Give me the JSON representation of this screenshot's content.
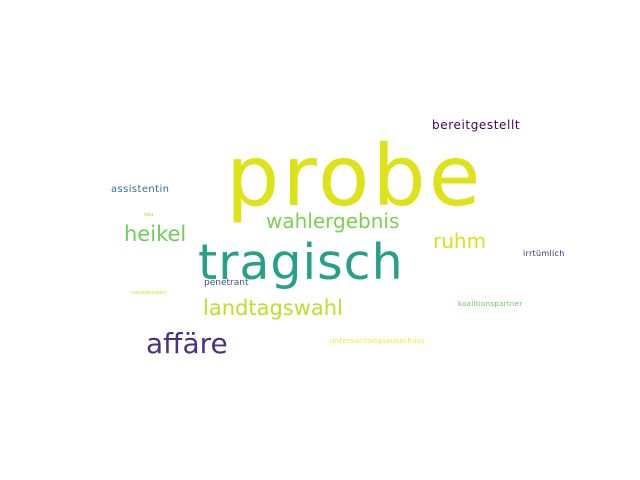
{
  "words": [
    {
      "text": "probe",
      "color": "#dde318"
    },
    {
      "text": "tragisch",
      "color": "#25a08b"
    },
    {
      "text": "affäre",
      "color": "#463480"
    },
    {
      "text": "landtagswahl",
      "color": "#bddf26"
    },
    {
      "text": "wahlergebnis",
      "color": "#7ad151"
    },
    {
      "text": "heikel",
      "color": "#6ccd5a"
    },
    {
      "text": "ruhm",
      "color": "#d8e219"
    },
    {
      "text": "bereitgestellt",
      "color": "#440154"
    },
    {
      "text": "assistentin",
      "color": "#2c728e"
    },
    {
      "text": "penetrant",
      "color": "#3b528b"
    },
    {
      "text": "irrtümlich",
      "color": "#482878"
    },
    {
      "text": "koalitionspartner",
      "color": "#5ec962"
    },
    {
      "text": "untersuchungsausschuss",
      "color": "#fde725"
    },
    {
      "text": "verzerbungen",
      "color": "#dde318"
    },
    {
      "text": "neu",
      "color": "#9bd93c"
    }
  ]
}
